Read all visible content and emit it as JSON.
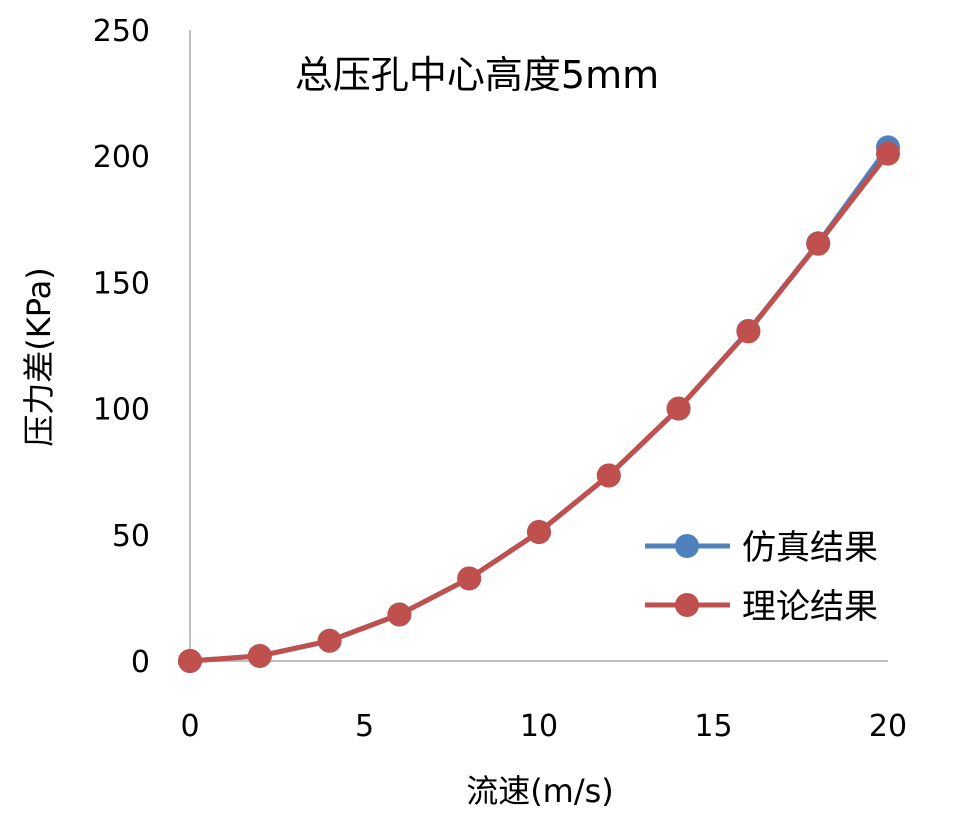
{
  "chart_data": {
    "type": "line",
    "title": "总压孔中心高度5mm",
    "xlabel": "流速(m/s)",
    "ylabel": "压力差(KPa)",
    "xlim": [
      0,
      20
    ],
    "ylim": [
      0,
      250
    ],
    "xticks": [
      "0",
      "5",
      "10",
      "15",
      "20"
    ],
    "yticks": [
      "0",
      "50",
      "100",
      "150",
      "200",
      "250"
    ],
    "grid": false,
    "legend_position": "right",
    "x": [
      0,
      2,
      4,
      6,
      8,
      10,
      12,
      14,
      16,
      18,
      20
    ],
    "series": [
      {
        "name": "仿真结果",
        "color": "#4F81BD",
        "values": [
          0,
          2,
          8,
          18.4,
          32.7,
          51.1,
          73.5,
          100,
          130.8,
          165.5,
          203.5
        ]
      },
      {
        "name": "理论结果",
        "color": "#C0504D",
        "values": [
          0,
          2,
          8,
          18.4,
          32.7,
          51.1,
          73.5,
          100,
          130.6,
          165.3,
          201
        ]
      }
    ]
  }
}
